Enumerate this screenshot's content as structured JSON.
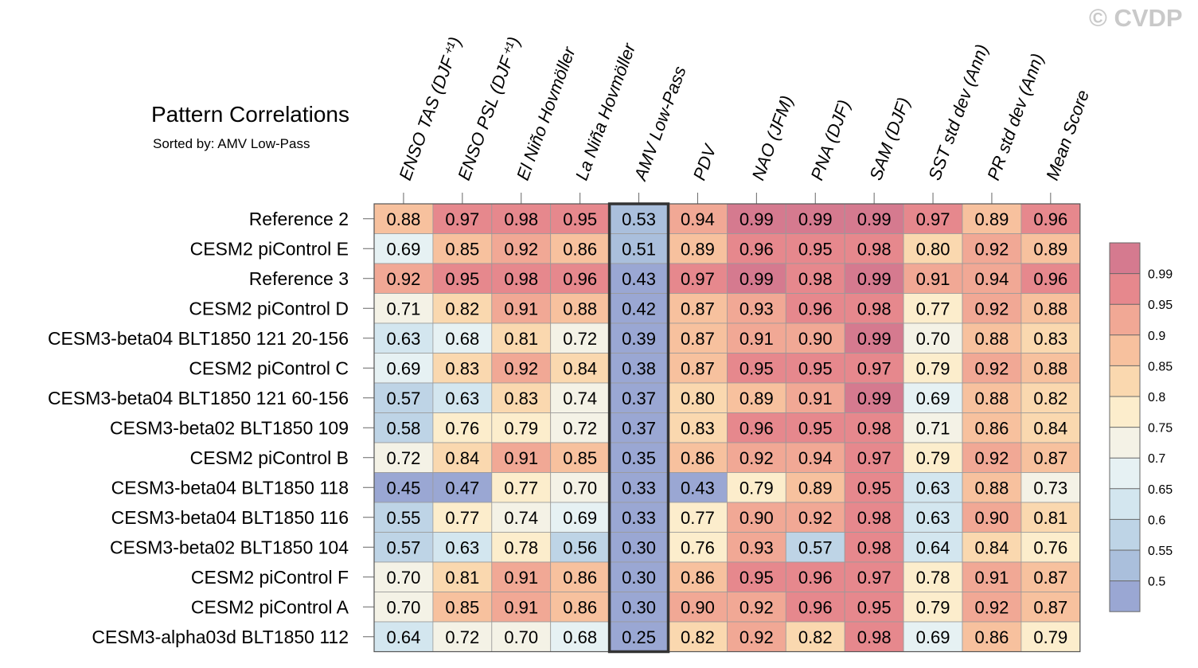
{
  "chart_data": {
    "type": "heatmap",
    "title": "Pattern Correlations",
    "subtitle": "Sorted by: AMV Low-Pass",
    "watermark": "© CVDP",
    "highlight_column": "AMV Low-Pass",
    "columns": [
      "ENSO TAS (DJF⁺¹)",
      "ENSO PSL (DJF⁺¹)",
      "El Niño Hovmöller",
      "La Niña Hovmöller",
      "AMV Low-Pass",
      "PDV",
      "NAO (JFM)",
      "PNA (DJF)",
      "SAM (DJF)",
      "SST std dev (Ann)",
      "PR std dev (Ann)",
      "Mean Score"
    ],
    "rows": [
      {
        "name": "Reference 2",
        "values": [
          "0.88",
          "0.97",
          "0.98",
          "0.95",
          "0.53",
          "0.94",
          "0.99",
          "0.99",
          "0.99",
          "0.97",
          "0.89",
          "0.96"
        ]
      },
      {
        "name": "CESM2 piControl E",
        "values": [
          "0.69",
          "0.85",
          "0.92",
          "0.86",
          "0.51",
          "0.89",
          "0.96",
          "0.95",
          "0.98",
          "0.80",
          "0.92",
          "0.89"
        ]
      },
      {
        "name": "Reference 3",
        "values": [
          "0.92",
          "0.95",
          "0.98",
          "0.96",
          "0.43",
          "0.97",
          "0.99",
          "0.98",
          "0.99",
          "0.91",
          "0.94",
          "0.96"
        ]
      },
      {
        "name": "CESM2 piControl D",
        "values": [
          "0.71",
          "0.82",
          "0.91",
          "0.88",
          "0.42",
          "0.87",
          "0.93",
          "0.96",
          "0.98",
          "0.77",
          "0.92",
          "0.88"
        ]
      },
      {
        "name": "CESM3-beta04 BLT1850 121 20-156",
        "values": [
          "0.63",
          "0.68",
          "0.81",
          "0.72",
          "0.39",
          "0.87",
          "0.91",
          "0.90",
          "0.99",
          "0.70",
          "0.88",
          "0.83"
        ]
      },
      {
        "name": "CESM2 piControl C",
        "values": [
          "0.69",
          "0.83",
          "0.92",
          "0.84",
          "0.38",
          "0.87",
          "0.95",
          "0.95",
          "0.97",
          "0.79",
          "0.92",
          "0.88"
        ]
      },
      {
        "name": "CESM3-beta04 BLT1850 121 60-156",
        "values": [
          "0.57",
          "0.63",
          "0.83",
          "0.74",
          "0.37",
          "0.80",
          "0.89",
          "0.91",
          "0.99",
          "0.69",
          "0.88",
          "0.82"
        ]
      },
      {
        "name": "CESM3-beta02 BLT1850 109",
        "values": [
          "0.58",
          "0.76",
          "0.79",
          "0.72",
          "0.37",
          "0.83",
          "0.96",
          "0.95",
          "0.98",
          "0.71",
          "0.86",
          "0.84"
        ]
      },
      {
        "name": "CESM2 piControl B",
        "values": [
          "0.72",
          "0.84",
          "0.91",
          "0.85",
          "0.35",
          "0.86",
          "0.92",
          "0.94",
          "0.97",
          "0.79",
          "0.92",
          "0.87"
        ]
      },
      {
        "name": "CESM3-beta04 BLT1850 118",
        "values": [
          "0.45",
          "0.47",
          "0.77",
          "0.70",
          "0.33",
          "0.43",
          "0.79",
          "0.89",
          "0.95",
          "0.63",
          "0.88",
          "0.73"
        ]
      },
      {
        "name": "CESM3-beta04 BLT1850 116",
        "values": [
          "0.55",
          "0.77",
          "0.74",
          "0.69",
          "0.33",
          "0.77",
          "0.90",
          "0.92",
          "0.98",
          "0.63",
          "0.90",
          "0.81"
        ]
      },
      {
        "name": "CESM3-beta02 BLT1850 104",
        "values": [
          "0.57",
          "0.63",
          "0.78",
          "0.56",
          "0.30",
          "0.76",
          "0.93",
          "0.57",
          "0.98",
          "0.64",
          "0.84",
          "0.76"
        ]
      },
      {
        "name": "CESM2 piControl F",
        "values": [
          "0.70",
          "0.81",
          "0.91",
          "0.86",
          "0.30",
          "0.86",
          "0.95",
          "0.96",
          "0.97",
          "0.78",
          "0.91",
          "0.87"
        ]
      },
      {
        "name": "CESM2 piControl A",
        "values": [
          "0.70",
          "0.85",
          "0.91",
          "0.86",
          "0.30",
          "0.90",
          "0.92",
          "0.96",
          "0.95",
          "0.79",
          "0.92",
          "0.87"
        ]
      },
      {
        "name": "CESM3-alpha03d BLT1850 112",
        "values": [
          "0.64",
          "0.72",
          "0.70",
          "0.68",
          "0.25",
          "0.82",
          "0.92",
          "0.82",
          "0.98",
          "0.69",
          "0.86",
          "0.79"
        ]
      }
    ],
    "colorbar": {
      "levels": [
        "0.5",
        "0.55",
        "0.6",
        "0.65",
        "0.7",
        "0.75",
        "0.8",
        "0.85",
        "0.9",
        "0.95",
        "0.99"
      ],
      "colors": [
        "#9aa7d3",
        "#aabfdc",
        "#bed4e6",
        "#d3e6ef",
        "#e6f1f3",
        "#f4f2e6",
        "#fcedcc",
        "#fad8af",
        "#f7c19e",
        "#f1a895",
        "#e6888d",
        "#d57a8f"
      ]
    }
  }
}
